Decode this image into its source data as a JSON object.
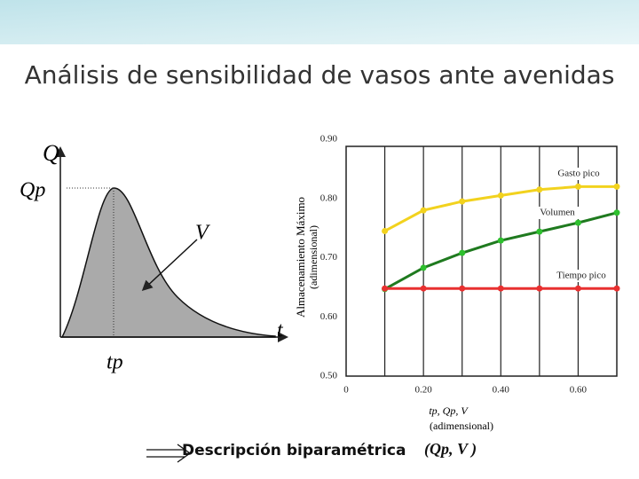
{
  "title": "Análisis de sensibilidad de vasos ante avenidas",
  "diagram": {
    "q_label": "Q",
    "qp_label": "Qp",
    "v_label": "V",
    "t_label": "t",
    "tp_label": "tp"
  },
  "chart_data": {
    "type": "line",
    "y_title": "Almacenamiento Máximo",
    "y_subtitle": "(adimensional)",
    "x_title": "tp, Qp, V",
    "x_subtitle": "(adimensional)",
    "xlim": [
      0,
      0.7
    ],
    "ylim": [
      0.5,
      0.9
    ],
    "xticks": [
      0,
      {
        "value": 0.2,
        "label": "0.20"
      },
      {
        "value": 0.4,
        "label": "0.40"
      },
      {
        "value": 0.6,
        "label": "0.60"
      }
    ],
    "x_minor_ticks": [
      0.1,
      0.3,
      0.5
    ],
    "yticks": [
      {
        "value": 0.5,
        "label": "0.50"
      },
      {
        "value": 0.6,
        "label": "0.60"
      },
      {
        "value": 0.7,
        "label": "0.70"
      },
      {
        "value": 0.8,
        "label": "0.80"
      },
      {
        "value": 0.9,
        "label": "0.90"
      }
    ],
    "grid": true,
    "x": [
      0.1,
      0.2,
      0.3,
      0.4,
      0.5,
      0.6,
      0.7
    ],
    "series": [
      {
        "name": "Gasto pico",
        "color": "#f2d21e",
        "values": [
          0.745,
          0.78,
          0.795,
          0.805,
          0.815,
          0.82,
          0.82
        ]
      },
      {
        "name": "Volumen",
        "color": "#1f7a1f",
        "values": [
          0.647,
          0.683,
          0.708,
          0.729,
          0.744,
          0.759,
          0.776
        ]
      },
      {
        "name": "Tiempo pico",
        "color": "#e83030",
        "values": [
          0.648,
          0.648,
          0.648,
          0.648,
          0.648,
          0.648,
          0.648
        ]
      }
    ]
  },
  "footer": {
    "text": "Descripción biparamétrica",
    "params": "(Qp, V )"
  }
}
